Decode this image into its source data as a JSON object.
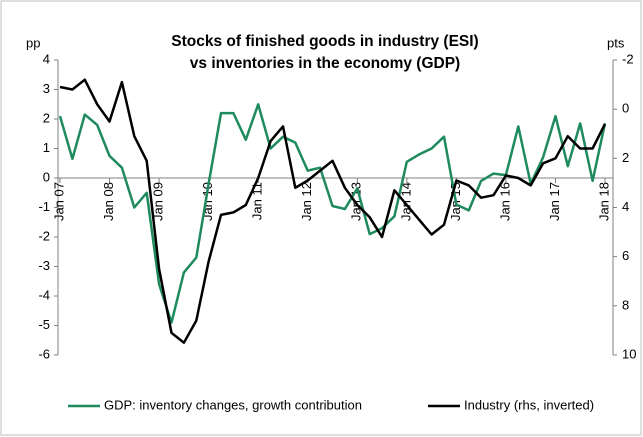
{
  "chart_data": {
    "type": "line",
    "title_lines": [
      "Stocks of finished goods in industry (ESI)",
      "vs inventories in the economy (GDP)"
    ],
    "y_unit": "pp",
    "y2_unit": "pts",
    "x": [
      "Jan 07",
      null,
      null,
      null,
      "Jan 08",
      null,
      null,
      null,
      "Jan 09",
      null,
      null,
      null,
      "Jan 10",
      null,
      null,
      null,
      "Jan 11",
      null,
      null,
      null,
      "Jan 12",
      null,
      null,
      null,
      "Jan 13",
      null,
      null,
      null,
      "Jan 14",
      null,
      null,
      null,
      "Jan 15",
      null,
      null,
      null,
      "Jan 16",
      null,
      null,
      null,
      "Jan 17",
      null,
      null,
      null,
      "Jan 18"
    ],
    "series": [
      {
        "name": "GDP: inventory changes, growth contribution",
        "color": "#1e8a5e",
        "axis": "y",
        "values": [
          2.1,
          0.65,
          2.15,
          1.8,
          0.75,
          0.35,
          -1.0,
          -0.5,
          -3.6,
          -4.9,
          -3.2,
          -2.7,
          -0.2,
          2.2,
          2.2,
          1.3,
          2.5,
          1.0,
          1.4,
          1.2,
          0.25,
          0.35,
          -0.95,
          -1.05,
          -0.35,
          -1.9,
          -1.7,
          -1.3,
          0.55,
          0.8,
          1.0,
          1.4,
          -0.9,
          -1.1,
          -0.1,
          0.15,
          0.1,
          1.75,
          -0.2,
          0.7,
          2.1,
          0.4,
          1.85,
          -0.1,
          1.85
        ]
      },
      {
        "name": "Industry (rhs, inverted)",
        "color": "#000000",
        "axis": "y2",
        "values": [
          -0.9,
          -0.8,
          -1.2,
          -0.2,
          0.5,
          -1.1,
          1.1,
          2.1,
          6.5,
          9.1,
          9.5,
          8.6,
          6.2,
          4.3,
          4.2,
          3.9,
          2.8,
          1.3,
          0.7,
          3.2,
          2.9,
          2.5,
          2.1,
          3.2,
          3.9,
          4.4,
          5.2,
          3.3,
          3.9,
          4.5,
          5.1,
          4.7,
          2.9,
          3.1,
          3.6,
          3.5,
          2.7,
          2.8,
          3.1,
          2.2,
          2.0,
          1.1,
          1.6,
          1.6,
          0.6
        ]
      }
    ],
    "ylim": [
      -6,
      4
    ],
    "yticks": [
      -6,
      -5,
      -4,
      -3,
      -2,
      -1,
      0,
      1,
      2,
      3,
      4
    ],
    "y2lim": [
      10,
      -2
    ],
    "y2ticks": [
      -2,
      0,
      2,
      4,
      6,
      8,
      10
    ],
    "y2_inverted": true,
    "legend": "bottom"
  }
}
